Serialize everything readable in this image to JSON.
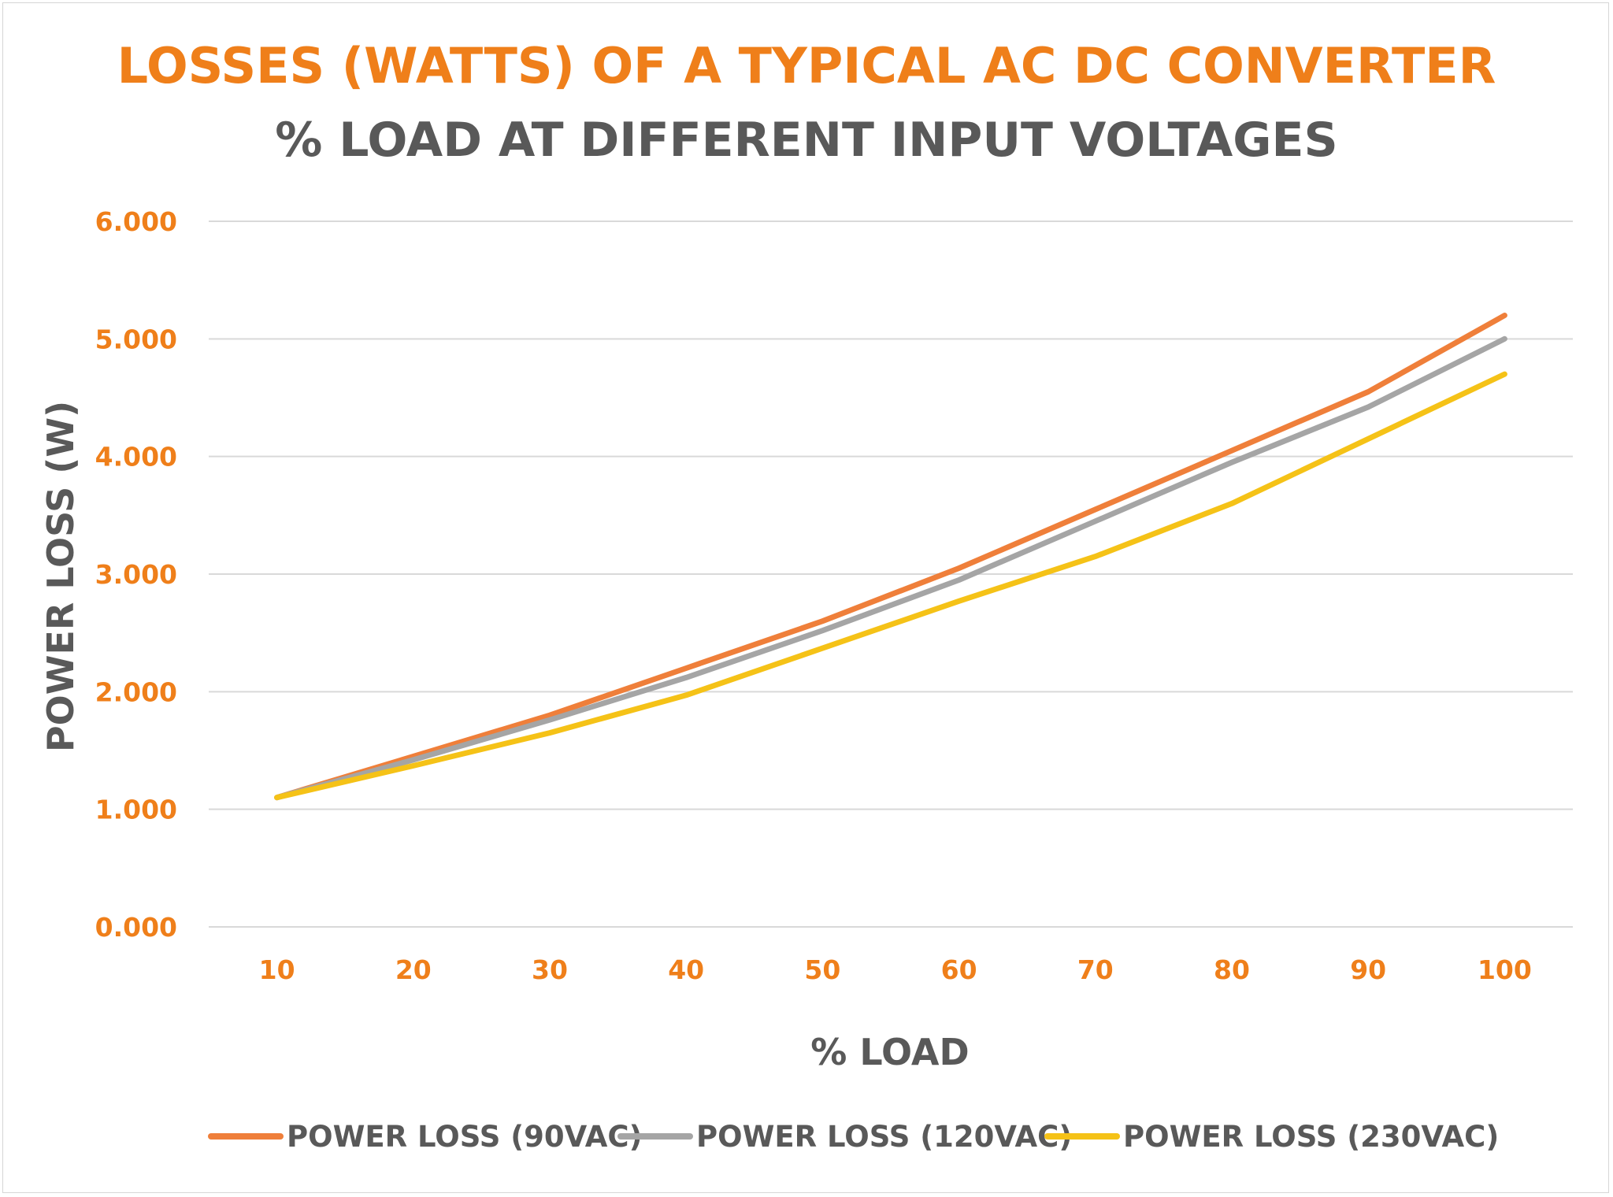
{
  "chart_data": {
    "type": "line",
    "title": "LOSSES (WATTS) OF A TYPICAL AC DC CONVERTER",
    "subtitle": "% LOAD AT DIFFERENT INPUT VOLTAGES",
    "xlabel": "% LOAD",
    "ylabel": "POWER LOSS (W)",
    "categories": [
      "10",
      "20",
      "30",
      "40",
      "50",
      "60",
      "70",
      "80",
      "90",
      "100"
    ],
    "y_ticks": [
      "0.000",
      "1.000",
      "2.000",
      "3.000",
      "4.000",
      "5.000",
      "6.000"
    ],
    "ylim": [
      0,
      6
    ],
    "grid": true,
    "legend_position": "bottom",
    "series": [
      {
        "name": "POWER LOSS (90VAC)",
        "color": "#ef7f3a",
        "values": [
          1.1,
          1.45,
          1.8,
          2.2,
          2.6,
          3.05,
          3.55,
          4.05,
          4.55,
          5.2
        ]
      },
      {
        "name": "POWER LOSS (120VAC)",
        "color": "#a5a5a5",
        "values": [
          1.1,
          1.42,
          1.76,
          2.12,
          2.52,
          2.95,
          3.45,
          3.95,
          4.42,
          5.0
        ]
      },
      {
        "name": "POWER LOSS (230VAC)",
        "color": "#f5c217",
        "values": [
          1.1,
          1.37,
          1.65,
          1.97,
          2.37,
          2.77,
          3.15,
          3.6,
          4.15,
          4.7
        ]
      }
    ]
  }
}
